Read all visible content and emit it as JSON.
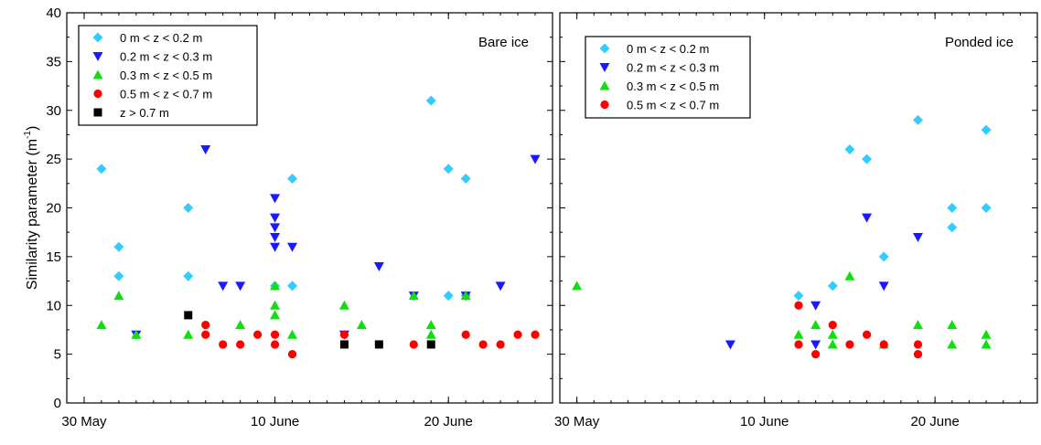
{
  "chart_data": [
    {
      "type": "scatter",
      "panel_label": "Bare ice",
      "ylabel": "Similarity parameter (m⁻¹)",
      "ylim": [
        0,
        40
      ],
      "yticks": [
        "0",
        "5",
        "10",
        "15",
        "20",
        "25",
        "30",
        "35",
        "40"
      ],
      "xlim": [
        "2007-05-29",
        "2007-06-26"
      ],
      "xticks": [
        {
          "date": "2007-05-30",
          "label": "30 May"
        },
        {
          "date": "2007-06-10",
          "label": "10 June"
        },
        {
          "date": "2007-06-20",
          "label": "20 June"
        }
      ],
      "legend_position": "top-left",
      "series": [
        {
          "name": "0 m < z < 0.2 m",
          "marker": "diamond",
          "color": "#33ccff",
          "x": [
            "2007-05-31",
            "2007-06-01",
            "2007-06-01",
            "2007-06-05",
            "2007-06-05",
            "2007-06-10",
            "2007-06-11",
            "2007-06-11",
            "2007-06-20",
            "2007-06-20",
            "2007-06-19",
            "2007-06-21",
            "2007-06-21"
          ],
          "y": [
            24,
            16,
            13,
            20,
            13,
            12,
            23,
            12,
            24,
            11,
            31,
            23,
            11
          ]
        },
        {
          "name": "0.2 m < z < 0.3 m",
          "marker": "triangle-down",
          "color": "#1a1aff",
          "x": [
            "2007-06-02",
            "2007-06-06",
            "2007-06-07",
            "2007-06-08",
            "2007-06-10",
            "2007-06-10",
            "2007-06-10",
            "2007-06-10",
            "2007-06-10",
            "2007-06-11",
            "2007-06-14",
            "2007-06-16",
            "2007-06-18",
            "2007-06-21",
            "2007-06-23",
            "2007-06-25"
          ],
          "y": [
            7,
            26,
            12,
            12,
            21,
            19,
            18,
            17,
            16,
            16,
            7,
            14,
            11,
            11,
            12,
            25
          ]
        },
        {
          "name": "0.3 m < z < 0.5 m",
          "marker": "triangle-up",
          "color": "#11dd11",
          "x": [
            "2007-05-31",
            "2007-06-01",
            "2007-06-02",
            "2007-06-05",
            "2007-06-08",
            "2007-06-10",
            "2007-06-10",
            "2007-06-10",
            "2007-06-11",
            "2007-06-14",
            "2007-06-15",
            "2007-06-18",
            "2007-06-19",
            "2007-06-19",
            "2007-06-21"
          ],
          "y": [
            8,
            11,
            7,
            7,
            8,
            12,
            10,
            9,
            7,
            10,
            8,
            11,
            8,
            7,
            11
          ]
        },
        {
          "name": "0.5 m < z < 0.7 m",
          "marker": "circle",
          "color": "#ff0000",
          "x": [
            "2007-06-06",
            "2007-06-06",
            "2007-06-07",
            "2007-06-08",
            "2007-06-09",
            "2007-06-10",
            "2007-06-10",
            "2007-06-11",
            "2007-06-14",
            "2007-06-16",
            "2007-06-18",
            "2007-06-21",
            "2007-06-22",
            "2007-06-23",
            "2007-06-24",
            "2007-06-25"
          ],
          "y": [
            8,
            7,
            6,
            6,
            7,
            7,
            6,
            5,
            7,
            6,
            6,
            7,
            6,
            6,
            7,
            7
          ]
        },
        {
          "name": "z > 0.7 m",
          "marker": "square",
          "color": "#000000",
          "x": [
            "2007-06-05",
            "2007-06-14",
            "2007-06-16",
            "2007-06-19"
          ],
          "y": [
            9,
            6,
            6,
            6
          ]
        }
      ]
    },
    {
      "type": "scatter",
      "panel_label": "Ponded ice",
      "ylim": [
        0,
        40
      ],
      "xlim": [
        "2007-05-29",
        "2007-06-26"
      ],
      "xticks": [
        {
          "date": "2007-05-30",
          "label": "30 May"
        },
        {
          "date": "2007-06-10",
          "label": "10 June"
        },
        {
          "date": "2007-06-20",
          "label": "20 June"
        }
      ],
      "legend_position": "top-left",
      "series": [
        {
          "name": "0 m < z < 0.2 m",
          "marker": "diamond",
          "color": "#33ccff",
          "x": [
            "2007-06-12",
            "2007-06-14",
            "2007-06-15",
            "2007-06-16",
            "2007-06-17",
            "2007-06-19",
            "2007-06-21",
            "2007-06-21",
            "2007-06-23",
            "2007-06-23"
          ],
          "y": [
            11,
            12,
            26,
            25,
            15,
            29,
            18,
            20,
            28,
            20
          ]
        },
        {
          "name": "0.2 m < z < 0.3 m",
          "marker": "triangle-down",
          "color": "#1a1aff",
          "x": [
            "2007-06-08",
            "2007-06-13",
            "2007-06-13",
            "2007-06-16",
            "2007-06-17",
            "2007-06-19"
          ],
          "y": [
            6,
            10,
            6,
            19,
            12,
            17
          ]
        },
        {
          "name": "0.3 m < z < 0.5 m",
          "marker": "triangle-up",
          "color": "#11dd11",
          "x": [
            "2007-05-30",
            "2007-06-12",
            "2007-06-13",
            "2007-06-14",
            "2007-06-14",
            "2007-06-15",
            "2007-06-17",
            "2007-06-19",
            "2007-06-21",
            "2007-06-21",
            "2007-06-23",
            "2007-06-23"
          ],
          "y": [
            12,
            7,
            8,
            7,
            6,
            13,
            6,
            8,
            8,
            6,
            7,
            6
          ]
        },
        {
          "name": "0.5 m < z < 0.7 m",
          "marker": "circle",
          "color": "#ff0000",
          "x": [
            "2007-06-12",
            "2007-06-12",
            "2007-06-13",
            "2007-06-14",
            "2007-06-15",
            "2007-06-16",
            "2007-06-17",
            "2007-06-19",
            "2007-06-19"
          ],
          "y": [
            10,
            6,
            5,
            8,
            6,
            7,
            6,
            6,
            5
          ]
        }
      ]
    }
  ]
}
